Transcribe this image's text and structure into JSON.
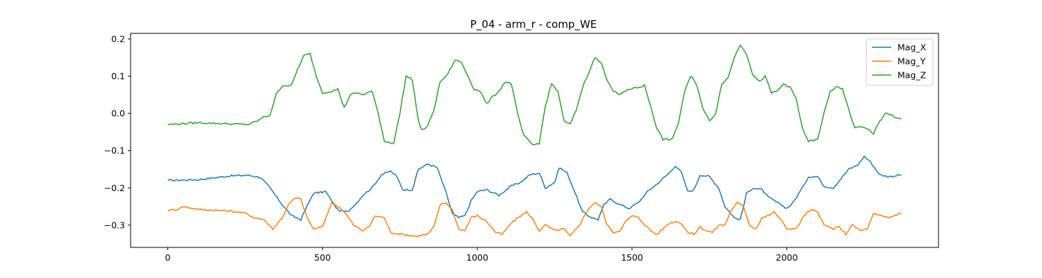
{
  "chart_data": {
    "type": "line",
    "title": "P_04 - arm_r - comp_WE",
    "xlabel": "",
    "ylabel": "",
    "xlim": [
      -120,
      2490
    ],
    "ylim": [
      -0.36,
      0.215
    ],
    "x_ticks": [
      0,
      500,
      1000,
      1500,
      2000
    ],
    "y_ticks": [
      0.2,
      0.1,
      0.0,
      -0.1,
      -0.2,
      -0.3
    ],
    "x_tick_labels": [
      "0",
      "500",
      "1000",
      "1500",
      "2000"
    ],
    "y_tick_labels": [
      "0.2",
      "0.1",
      "0.0",
      "−0.1",
      "−0.2",
      "−0.3"
    ],
    "grid": false,
    "legend_position": "top-right",
    "series": [
      {
        "name": "Mag_X",
        "color": "#1f77b4",
        "points": [
          [
            0,
            -0.18
          ],
          [
            100,
            -0.178
          ],
          [
            200,
            -0.168
          ],
          [
            260,
            -0.166
          ],
          [
            300,
            -0.172
          ],
          [
            330,
            -0.2
          ],
          [
            370,
            -0.245
          ],
          [
            400,
            -0.275
          ],
          [
            430,
            -0.285
          ],
          [
            450,
            -0.25
          ],
          [
            470,
            -0.215
          ],
          [
            510,
            -0.21
          ],
          [
            530,
            -0.235
          ],
          [
            550,
            -0.26
          ],
          [
            580,
            -0.265
          ],
          [
            610,
            -0.24
          ],
          [
            630,
            -0.22
          ],
          [
            660,
            -0.2
          ],
          [
            690,
            -0.165
          ],
          [
            720,
            -0.155
          ],
          [
            740,
            -0.17
          ],
          [
            760,
            -0.205
          ],
          [
            790,
            -0.205
          ],
          [
            810,
            -0.15
          ],
          [
            840,
            -0.136
          ],
          [
            870,
            -0.145
          ],
          [
            900,
            -0.215
          ],
          [
            920,
            -0.27
          ],
          [
            940,
            -0.28
          ],
          [
            960,
            -0.275
          ],
          [
            980,
            -0.235
          ],
          [
            1000,
            -0.21
          ],
          [
            1030,
            -0.205
          ],
          [
            1070,
            -0.22
          ],
          [
            1110,
            -0.195
          ],
          [
            1140,
            -0.185
          ],
          [
            1170,
            -0.165
          ],
          [
            1200,
            -0.16
          ],
          [
            1220,
            -0.2
          ],
          [
            1250,
            -0.185
          ],
          [
            1265,
            -0.145
          ],
          [
            1290,
            -0.16
          ],
          [
            1310,
            -0.2
          ],
          [
            1340,
            -0.265
          ],
          [
            1370,
            -0.28
          ],
          [
            1390,
            -0.285
          ],
          [
            1410,
            -0.245
          ],
          [
            1430,
            -0.23
          ],
          [
            1460,
            -0.245
          ],
          [
            1490,
            -0.255
          ],
          [
            1520,
            -0.24
          ],
          [
            1550,
            -0.21
          ],
          [
            1580,
            -0.19
          ],
          [
            1620,
            -0.16
          ],
          [
            1640,
            -0.14
          ],
          [
            1660,
            -0.16
          ],
          [
            1680,
            -0.21
          ],
          [
            1700,
            -0.205
          ],
          [
            1720,
            -0.165
          ],
          [
            1750,
            -0.17
          ],
          [
            1780,
            -0.2
          ],
          [
            1800,
            -0.25
          ],
          [
            1830,
            -0.28
          ],
          [
            1850,
            -0.285
          ],
          [
            1870,
            -0.215
          ],
          [
            1890,
            -0.2
          ],
          [
            1920,
            -0.205
          ],
          [
            1940,
            -0.225
          ],
          [
            1960,
            -0.235
          ],
          [
            2000,
            -0.255
          ],
          [
            2020,
            -0.24
          ],
          [
            2050,
            -0.2
          ],
          [
            2070,
            -0.17
          ],
          [
            2100,
            -0.17
          ],
          [
            2120,
            -0.195
          ],
          [
            2150,
            -0.2
          ],
          [
            2170,
            -0.18
          ],
          [
            2200,
            -0.15
          ],
          [
            2230,
            -0.138
          ],
          [
            2250,
            -0.115
          ],
          [
            2270,
            -0.13
          ],
          [
            2300,
            -0.165
          ],
          [
            2330,
            -0.17
          ],
          [
            2370,
            -0.165
          ]
        ]
      },
      {
        "name": "Mag_Y",
        "color": "#ff7f0e",
        "points": [
          [
            0,
            -0.26
          ],
          [
            30,
            -0.258
          ],
          [
            50,
            -0.25
          ],
          [
            100,
            -0.258
          ],
          [
            200,
            -0.262
          ],
          [
            250,
            -0.268
          ],
          [
            280,
            -0.28
          ],
          [
            310,
            -0.285
          ],
          [
            340,
            -0.31
          ],
          [
            370,
            -0.28
          ],
          [
            390,
            -0.245
          ],
          [
            410,
            -0.228
          ],
          [
            430,
            -0.23
          ],
          [
            450,
            -0.28
          ],
          [
            470,
            -0.31
          ],
          [
            500,
            -0.305
          ],
          [
            520,
            -0.26
          ],
          [
            530,
            -0.24
          ],
          [
            560,
            -0.255
          ],
          [
            580,
            -0.275
          ],
          [
            600,
            -0.3
          ],
          [
            630,
            -0.315
          ],
          [
            650,
            -0.305
          ],
          [
            670,
            -0.275
          ],
          [
            700,
            -0.28
          ],
          [
            720,
            -0.32
          ],
          [
            760,
            -0.325
          ],
          [
            800,
            -0.33
          ],
          [
            840,
            -0.325
          ],
          [
            860,
            -0.305
          ],
          [
            880,
            -0.245
          ],
          [
            900,
            -0.24
          ],
          [
            920,
            -0.26
          ],
          [
            940,
            -0.31
          ],
          [
            960,
            -0.315
          ],
          [
            980,
            -0.28
          ],
          [
            1000,
            -0.275
          ],
          [
            1030,
            -0.29
          ],
          [
            1060,
            -0.32
          ],
          [
            1080,
            -0.325
          ],
          [
            1110,
            -0.295
          ],
          [
            1140,
            -0.275
          ],
          [
            1160,
            -0.265
          ],
          [
            1180,
            -0.285
          ],
          [
            1200,
            -0.315
          ],
          [
            1220,
            -0.3
          ],
          [
            1250,
            -0.315
          ],
          [
            1280,
            -0.31
          ],
          [
            1300,
            -0.33
          ],
          [
            1330,
            -0.3
          ],
          [
            1360,
            -0.255
          ],
          [
            1380,
            -0.24
          ],
          [
            1400,
            -0.25
          ],
          [
            1420,
            -0.3
          ],
          [
            1440,
            -0.32
          ],
          [
            1460,
            -0.315
          ],
          [
            1480,
            -0.29
          ],
          [
            1500,
            -0.275
          ],
          [
            1520,
            -0.28
          ],
          [
            1560,
            -0.315
          ],
          [
            1580,
            -0.325
          ],
          [
            1620,
            -0.295
          ],
          [
            1640,
            -0.29
          ],
          [
            1660,
            -0.295
          ],
          [
            1680,
            -0.32
          ],
          [
            1700,
            -0.325
          ],
          [
            1720,
            -0.305
          ],
          [
            1740,
            -0.315
          ],
          [
            1760,
            -0.32
          ],
          [
            1780,
            -0.3
          ],
          [
            1800,
            -0.3
          ],
          [
            1820,
            -0.26
          ],
          [
            1840,
            -0.24
          ],
          [
            1860,
            -0.25
          ],
          [
            1880,
            -0.3
          ],
          [
            1900,
            -0.31
          ],
          [
            1920,
            -0.28
          ],
          [
            1940,
            -0.275
          ],
          [
            1960,
            -0.265
          ],
          [
            1980,
            -0.285
          ],
          [
            2000,
            -0.31
          ],
          [
            2030,
            -0.31
          ],
          [
            2060,
            -0.27
          ],
          [
            2080,
            -0.26
          ],
          [
            2100,
            -0.265
          ],
          [
            2120,
            -0.3
          ],
          [
            2150,
            -0.31
          ],
          [
            2170,
            -0.305
          ],
          [
            2190,
            -0.325
          ],
          [
            2210,
            -0.3
          ],
          [
            2240,
            -0.315
          ],
          [
            2260,
            -0.31
          ],
          [
            2280,
            -0.27
          ],
          [
            2300,
            -0.275
          ],
          [
            2330,
            -0.28
          ],
          [
            2360,
            -0.27
          ],
          [
            2370,
            -0.27
          ]
        ]
      },
      {
        "name": "Mag_Z",
        "color": "#2ca02c",
        "points": [
          [
            0,
            -0.03
          ],
          [
            100,
            -0.025
          ],
          [
            200,
            -0.028
          ],
          [
            260,
            -0.03
          ],
          [
            290,
            -0.02
          ],
          [
            310,
            -0.01
          ],
          [
            330,
            -0.005
          ],
          [
            350,
            0.05
          ],
          [
            370,
            0.075
          ],
          [
            400,
            0.075
          ],
          [
            420,
            0.12
          ],
          [
            440,
            0.155
          ],
          [
            460,
            0.16
          ],
          [
            480,
            0.1
          ],
          [
            500,
            0.055
          ],
          [
            530,
            0.06
          ],
          [
            550,
            0.065
          ],
          [
            570,
            0.015
          ],
          [
            590,
            0.05
          ],
          [
            610,
            0.055
          ],
          [
            630,
            0.05
          ],
          [
            660,
            0.06
          ],
          [
            680,
            0.0
          ],
          [
            700,
            -0.075
          ],
          [
            730,
            -0.08
          ],
          [
            750,
            0.0
          ],
          [
            770,
            0.1
          ],
          [
            790,
            0.09
          ],
          [
            810,
            -0.02
          ],
          [
            820,
            -0.045
          ],
          [
            840,
            -0.035
          ],
          [
            860,
            0.01
          ],
          [
            880,
            0.085
          ],
          [
            900,
            0.1
          ],
          [
            930,
            0.145
          ],
          [
            950,
            0.135
          ],
          [
            970,
            0.1
          ],
          [
            990,
            0.065
          ],
          [
            1010,
            0.06
          ],
          [
            1030,
            0.025
          ],
          [
            1050,
            0.045
          ],
          [
            1070,
            0.06
          ],
          [
            1090,
            0.085
          ],
          [
            1110,
            0.08
          ],
          [
            1130,
            0.0
          ],
          [
            1150,
            -0.06
          ],
          [
            1180,
            -0.085
          ],
          [
            1200,
            -0.08
          ],
          [
            1220,
            0.02
          ],
          [
            1240,
            0.08
          ],
          [
            1260,
            0.06
          ],
          [
            1280,
            -0.02
          ],
          [
            1300,
            -0.03
          ],
          [
            1320,
            0.01
          ],
          [
            1340,
            0.07
          ],
          [
            1360,
            0.11
          ],
          [
            1380,
            0.15
          ],
          [
            1400,
            0.135
          ],
          [
            1420,
            0.09
          ],
          [
            1440,
            0.06
          ],
          [
            1460,
            0.05
          ],
          [
            1490,
            0.065
          ],
          [
            1520,
            0.07
          ],
          [
            1540,
            0.075
          ],
          [
            1560,
            0.02
          ],
          [
            1580,
            -0.04
          ],
          [
            1600,
            -0.07
          ],
          [
            1630,
            -0.07
          ],
          [
            1650,
            -0.025
          ],
          [
            1670,
            0.06
          ],
          [
            1690,
            0.1
          ],
          [
            1710,
            0.075
          ],
          [
            1730,
            0.01
          ],
          [
            1750,
            -0.02
          ],
          [
            1770,
            0.0
          ],
          [
            1790,
            0.08
          ],
          [
            1810,
            0.095
          ],
          [
            1830,
            0.15
          ],
          [
            1850,
            0.185
          ],
          [
            1870,
            0.16
          ],
          [
            1890,
            0.105
          ],
          [
            1910,
            0.085
          ],
          [
            1930,
            0.1
          ],
          [
            1950,
            0.055
          ],
          [
            1970,
            0.06
          ],
          [
            1990,
            0.08
          ],
          [
            2010,
            0.07
          ],
          [
            2030,
            0.04
          ],
          [
            2050,
            -0.04
          ],
          [
            2070,
            -0.075
          ],
          [
            2100,
            -0.07
          ],
          [
            2120,
            0.0
          ],
          [
            2140,
            0.06
          ],
          [
            2160,
            0.07
          ],
          [
            2180,
            0.065
          ],
          [
            2200,
            0.01
          ],
          [
            2220,
            -0.04
          ],
          [
            2240,
            -0.035
          ],
          [
            2260,
            -0.04
          ],
          [
            2280,
            -0.055
          ],
          [
            2300,
            -0.02
          ],
          [
            2320,
            0.0
          ],
          [
            2340,
            -0.005
          ],
          [
            2360,
            -0.015
          ],
          [
            2370,
            -0.015
          ]
        ]
      }
    ]
  }
}
